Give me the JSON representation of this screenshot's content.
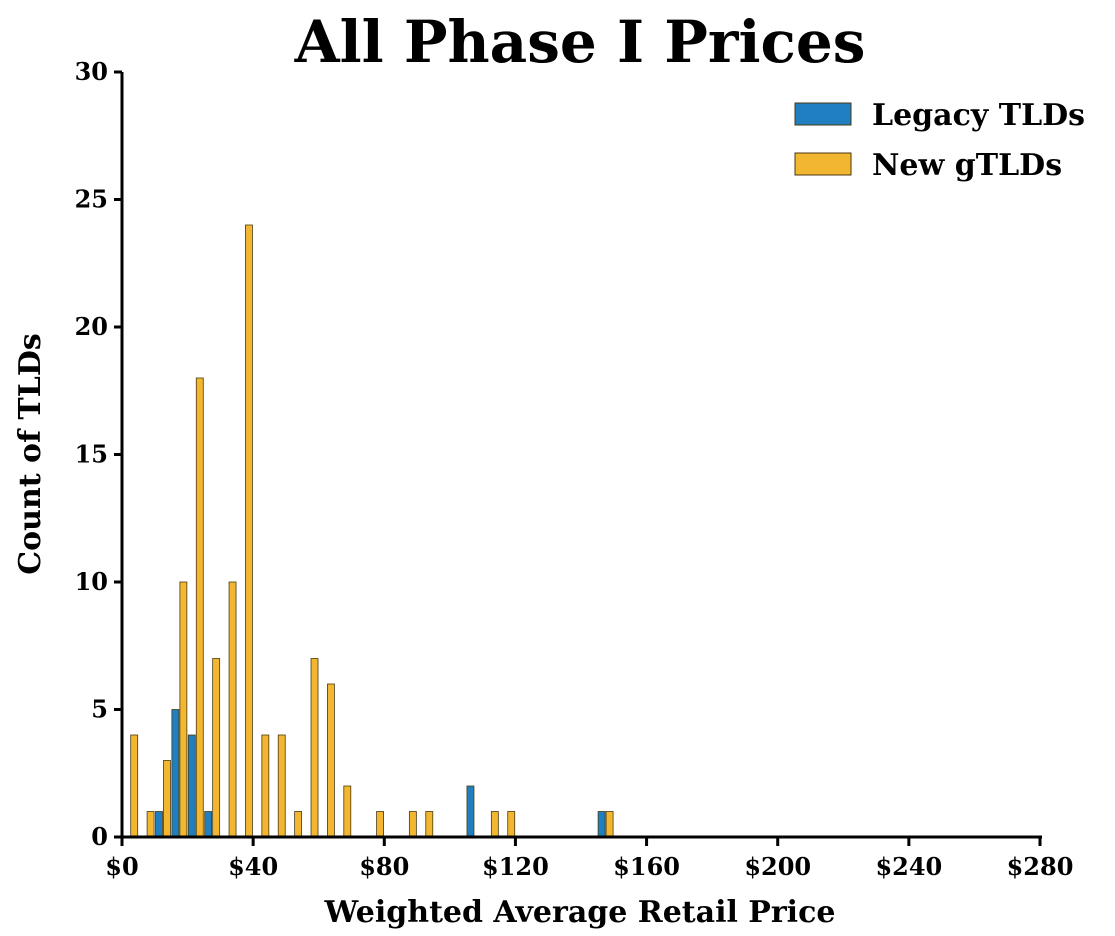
{
  "chart_data": {
    "type": "bar",
    "title": "All Phase I Prices",
    "xlabel": "Weighted Average Retail Price",
    "ylabel": "Count of TLDs",
    "xlim": [
      0,
      280
    ],
    "ylim": [
      0,
      30
    ],
    "x_ticks": [
      "$0",
      "$40",
      "$80",
      "$120",
      "$160",
      "$200",
      "$240",
      "$280"
    ],
    "x_tick_values": [
      0,
      40,
      80,
      120,
      160,
      200,
      240,
      280
    ],
    "y_ticks": [
      "0",
      "5",
      "10",
      "15",
      "20",
      "25",
      "30"
    ],
    "y_tick_values": [
      0,
      5,
      10,
      15,
      20,
      25,
      30
    ],
    "bin_width": 5,
    "legend_position": "top-right",
    "grid": false,
    "series": [
      {
        "name": "Legacy TLDs",
        "color": "#1f7fc1",
        "points": [
          {
            "x": 10,
            "y": 1
          },
          {
            "x": 15,
            "y": 5
          },
          {
            "x": 20,
            "y": 4
          },
          {
            "x": 25,
            "y": 1
          },
          {
            "x": 105,
            "y": 2
          },
          {
            "x": 145,
            "y": 1
          }
        ]
      },
      {
        "name": "New gTLDs",
        "color": "#f2b630",
        "points": [
          {
            "x": 0,
            "y": 4
          },
          {
            "x": 5,
            "y": 1
          },
          {
            "x": 10,
            "y": 3
          },
          {
            "x": 15,
            "y": 10
          },
          {
            "x": 20,
            "y": 18
          },
          {
            "x": 25,
            "y": 7
          },
          {
            "x": 30,
            "y": 10
          },
          {
            "x": 35,
            "y": 24
          },
          {
            "x": 40,
            "y": 4
          },
          {
            "x": 45,
            "y": 4
          },
          {
            "x": 50,
            "y": 1
          },
          {
            "x": 55,
            "y": 7
          },
          {
            "x": 60,
            "y": 6
          },
          {
            "x": 65,
            "y": 2
          },
          {
            "x": 75,
            "y": 1
          },
          {
            "x": 85,
            "y": 1
          },
          {
            "x": 90,
            "y": 1
          },
          {
            "x": 110,
            "y": 1
          },
          {
            "x": 115,
            "y": 1
          },
          {
            "x": 145,
            "y": 1
          }
        ]
      }
    ]
  }
}
